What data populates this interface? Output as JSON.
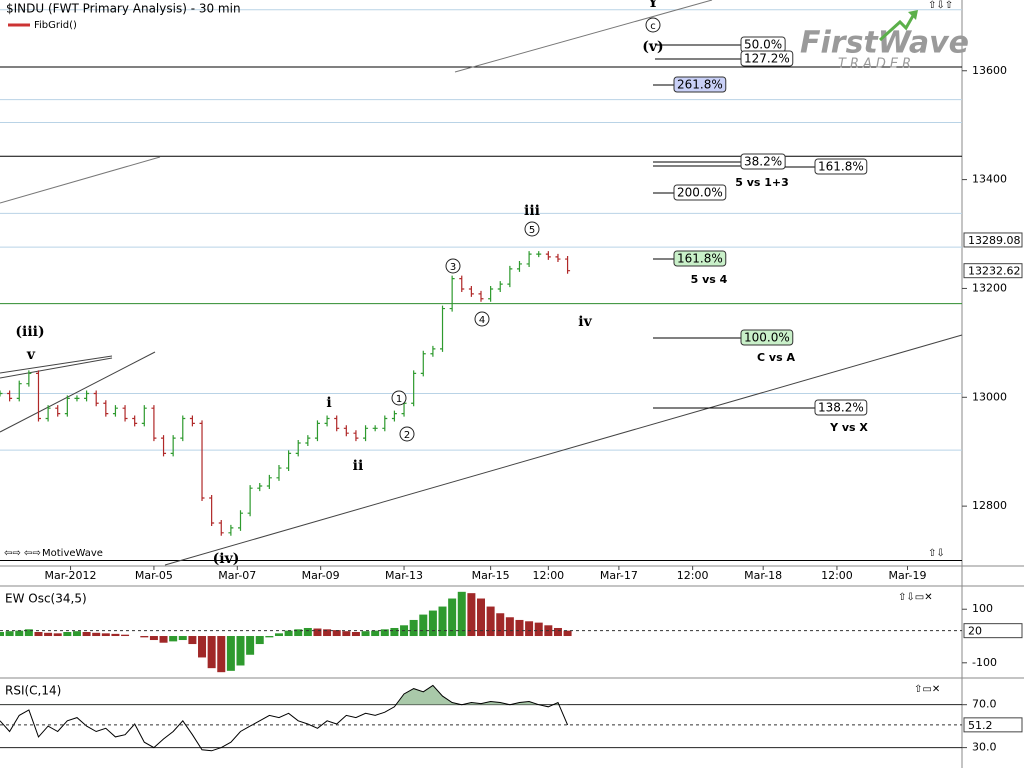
{
  "logo": {
    "name": "FirstWave",
    "tagline": "TRADER"
  },
  "chart_data": [
    {
      "type": "ohlc",
      "title": "$INDU (FWT Primary Analysis) - 30 min",
      "study": "FibGrid()",
      "footer": "MotiveWave",
      "x": [
        0,
        3,
        6,
        9,
        12,
        15,
        18,
        21,
        24,
        27,
        30,
        33,
        36,
        39,
        42,
        45,
        48,
        51,
        54,
        57,
        60,
        63,
        66,
        69,
        72,
        75,
        78,
        81,
        84,
        87,
        90,
        93,
        96,
        99,
        102,
        105,
        108,
        111,
        114,
        117,
        120,
        123,
        126,
        129,
        132,
        135,
        138,
        141,
        144,
        147,
        150,
        153,
        156,
        159,
        162,
        165,
        168,
        171,
        174,
        177
      ],
      "values": [
        13007,
        12998,
        13025,
        13044,
        12961,
        12980,
        12970,
        12998,
        12998,
        13007,
        12989,
        12970,
        12980,
        12961,
        12952,
        12980,
        12925,
        12897,
        12925,
        12961,
        12952,
        12815,
        12769,
        12751,
        12760,
        12787,
        12833,
        12837,
        12852,
        12870,
        12897,
        12916,
        12925,
        12952,
        12961,
        12943,
        12934,
        12925,
        12943,
        12943,
        12961,
        12970,
        12989,
        13044,
        13080,
        13089,
        13163,
        13218,
        13199,
        13190,
        13181,
        13199,
        13208,
        13236,
        13245,
        13263,
        13263,
        13258,
        13254,
        13232.62
      ],
      "up_color": "#2e9a2e",
      "down_color": "#b02828",
      "xlim": [
        0,
        300
      ],
      "ylim": [
        12690,
        13730
      ],
      "yticks": [
        12800,
        13000,
        13200,
        13400,
        13600
      ],
      "xticks": [
        {
          "value": 22,
          "label": "Mar-2012"
        },
        {
          "value": 48,
          "label": "Mar-05"
        },
        {
          "value": 74,
          "label": "Mar-07"
        },
        {
          "value": 100,
          "label": "Mar-09"
        },
        {
          "value": 126,
          "label": "Mar-13"
        },
        {
          "value": 153,
          "label": "Mar-15"
        },
        {
          "value": 171,
          "label": "12:00"
        },
        {
          "value": 193,
          "label": "Mar-17"
        },
        {
          "value": 216,
          "label": "12:00"
        },
        {
          "value": 238,
          "label": "Mar-18"
        },
        {
          "value": 261,
          "label": "12:00"
        },
        {
          "value": 283,
          "label": "Mar-19"
        }
      ],
      "price_tags": [
        13289.08
      ],
      "levels": [
        {
          "value": 13712,
          "color": "#b9d3e6"
        },
        {
          "value": 13607,
          "color": "#000000"
        },
        {
          "value": 13547,
          "color": "#b9d3e6"
        },
        {
          "value": 13505,
          "color": "#b9d3e6"
        },
        {
          "value": 13443,
          "color": "#000000"
        },
        {
          "value": 13338,
          "color": "#b9d3e6"
        },
        {
          "value": 13276,
          "color": "#b9d3e6"
        },
        {
          "value": 13172,
          "color": "#2e8b2e"
        },
        {
          "value": 13007,
          "color": "#b9d3e6"
        },
        {
          "value": 12903,
          "color": "#b9d3e6"
        },
        {
          "value": 12700,
          "color": "#000000"
        }
      ],
      "wave_labels": [
        "(iii)",
        "v",
        "i",
        "ii",
        "(iv)",
        "1",
        "2",
        "3",
        "4",
        "5",
        "iii",
        "iv",
        "Y",
        "c",
        "(v)"
      ],
      "fib_labels": [
        "50.0%",
        "127.2%",
        "261.8%",
        "38.2%",
        "161.8%",
        "200.0%",
        "161.8%",
        "100.0%",
        "138.2%"
      ],
      "fib_notes": [
        "5 vs 1+3",
        "5 vs 4",
        "C vs A",
        "Y vs X"
      ]
    },
    {
      "type": "bar",
      "title": "EW Osc(34,5)",
      "x": [
        0,
        3,
        6,
        9,
        12,
        15,
        18,
        21,
        24,
        27,
        30,
        33,
        36,
        39,
        42,
        45,
        48,
        51,
        54,
        57,
        60,
        63,
        66,
        69,
        72,
        75,
        78,
        81,
        84,
        87,
        90,
        93,
        96,
        99,
        102,
        105,
        108,
        111,
        114,
        117,
        120,
        123,
        126,
        129,
        132,
        135,
        138,
        141,
        144,
        147,
        150,
        153,
        156,
        159,
        162,
        165,
        168,
        171,
        174,
        177
      ],
      "values": [
        15,
        18,
        20,
        25,
        15,
        12,
        10,
        15,
        18,
        15,
        12,
        10,
        8,
        5,
        0,
        -5,
        -15,
        -25,
        -20,
        -15,
        -30,
        -80,
        -120,
        -135,
        -130,
        -110,
        -70,
        -30,
        -5,
        10,
        20,
        25,
        30,
        28,
        25,
        22,
        18,
        15,
        18,
        20,
        25,
        30,
        40,
        60,
        80,
        95,
        110,
        140,
        165,
        160,
        140,
        110,
        85,
        70,
        60,
        55,
        50,
        40,
        30,
        20
      ],
      "up_color": "#2e9a2e",
      "down_color": "#a02828",
      "xlim": [
        0,
        300
      ],
      "ylim": [
        -153,
        183
      ],
      "yticks": [
        100,
        -100
      ]
    },
    {
      "type": "line",
      "title": "RSI(C,14)",
      "x": [
        0,
        3,
        6,
        9,
        12,
        15,
        18,
        21,
        24,
        27,
        30,
        33,
        36,
        39,
        42,
        45,
        48,
        51,
        54,
        57,
        60,
        63,
        66,
        69,
        72,
        75,
        78,
        81,
        84,
        87,
        90,
        93,
        96,
        99,
        102,
        105,
        108,
        111,
        114,
        117,
        120,
        123,
        126,
        129,
        132,
        135,
        138,
        141,
        144,
        147,
        150,
        153,
        156,
        159,
        162,
        165,
        168,
        171,
        174,
        177
      ],
      "values": [
        55,
        45,
        60,
        65,
        40,
        50,
        45,
        55,
        58,
        50,
        45,
        48,
        40,
        42,
        52,
        35,
        30,
        38,
        45,
        55,
        42,
        28,
        27,
        30,
        35,
        45,
        50,
        55,
        60,
        58,
        62,
        55,
        52,
        48,
        55,
        52,
        60,
        58,
        62,
        60,
        63,
        68,
        80,
        85,
        82,
        88,
        78,
        72,
        70,
        72,
        71,
        73,
        72,
        70,
        72,
        73,
        70,
        68,
        72,
        51.2
      ],
      "color": "#000000",
      "fill_color": "#a9c9a9",
      "xlim": [
        0,
        300
      ],
      "ylim": [
        11,
        93
      ],
      "yticks": [
        {
          "value": 70,
          "label": "70.0"
        },
        {
          "value": 30,
          "label": "30.0"
        }
      ]
    }
  ]
}
